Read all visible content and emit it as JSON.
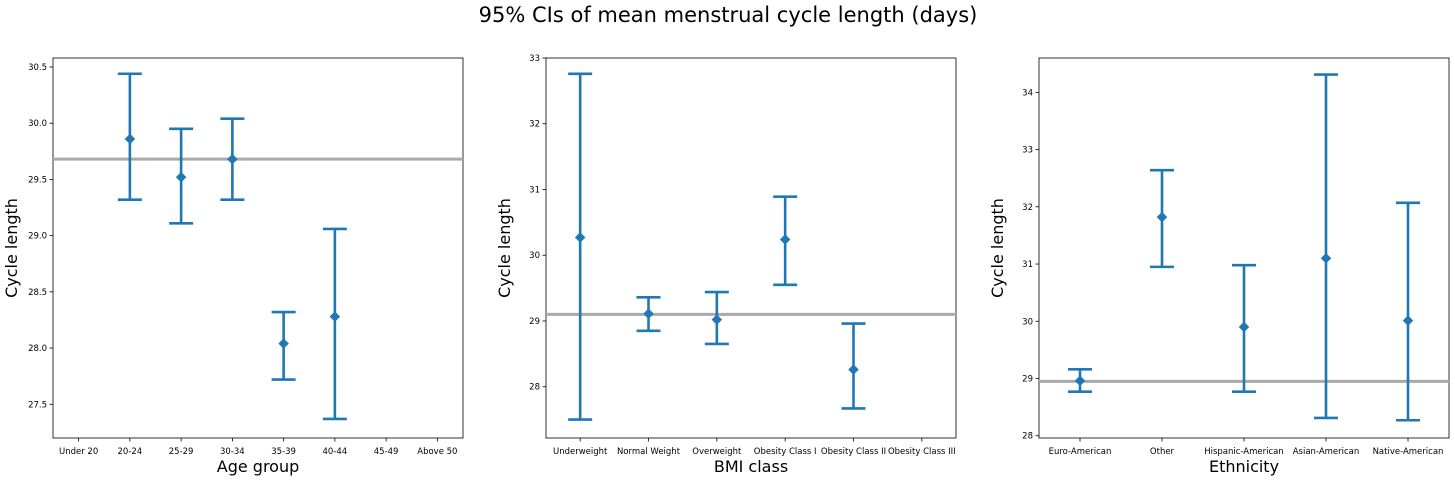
{
  "title": "95% CIs of mean menstrual cycle length (days)",
  "colors": {
    "series": "#1f77b4",
    "reference_line": "#aaaaaa",
    "frame": "#000000"
  },
  "chart_data": [
    {
      "type": "errorbar",
      "xlabel": "Age group",
      "ylabel": "Cycle length",
      "categories": [
        "Under 20",
        "20-24",
        "25-29",
        "30-34",
        "35-39",
        "40-44",
        "45-49",
        "Above 50"
      ],
      "yticks": [
        27.5,
        28.0,
        28.5,
        29.0,
        29.5,
        30.0,
        30.5
      ],
      "ytick_labels": [
        "27.5",
        "28.0",
        "28.5",
        "29.0",
        "29.5",
        "30.0",
        "30.5"
      ],
      "ylim": [
        27.2,
        30.58
      ],
      "reference_line": 29.68,
      "points": [
        {
          "category": "20-24",
          "mean": 29.86,
          "lower": 29.32,
          "upper": 30.44
        },
        {
          "category": "25-29",
          "mean": 29.52,
          "lower": 29.11,
          "upper": 29.95
        },
        {
          "category": "30-34",
          "mean": 29.68,
          "lower": 29.32,
          "upper": 30.04
        },
        {
          "category": "35-39",
          "mean": 28.04,
          "lower": 27.72,
          "upper": 28.32
        },
        {
          "category": "40-44",
          "mean": 28.28,
          "lower": 27.37,
          "upper": 29.06
        }
      ]
    },
    {
      "type": "errorbar",
      "xlabel": "BMI class",
      "ylabel": "Cycle length",
      "categories": [
        "Underweight",
        "Normal Weight",
        "Overweight",
        "Obesity Class I",
        "Obesity Class II",
        "Obesity Class III"
      ],
      "yticks": [
        28,
        29,
        30,
        31,
        32,
        33
      ],
      "ytick_labels": [
        "28",
        "29",
        "30",
        "31",
        "32",
        "33"
      ],
      "ylim": [
        27.22,
        33.0
      ],
      "reference_line": 29.1,
      "points": [
        {
          "category": "Underweight",
          "mean": 30.27,
          "lower": 27.5,
          "upper": 32.76
        },
        {
          "category": "Normal Weight",
          "mean": 29.11,
          "lower": 28.85,
          "upper": 29.36
        },
        {
          "category": "Overweight",
          "mean": 29.02,
          "lower": 28.65,
          "upper": 29.44
        },
        {
          "category": "Obesity Class I",
          "mean": 30.24,
          "lower": 29.55,
          "upper": 30.89
        },
        {
          "category": "Obesity Class II",
          "mean": 28.26,
          "lower": 27.67,
          "upper": 28.96
        }
      ]
    },
    {
      "type": "errorbar",
      "xlabel": "Ethnicity",
      "ylabel": "Cycle length",
      "categories": [
        "Euro-American",
        "Other",
        "Hispanic-American",
        "Asian-American",
        "Native-American"
      ],
      "yticks": [
        28,
        29,
        30,
        31,
        32,
        33,
        34
      ],
      "ytick_labels": [
        "28",
        "29",
        "30",
        "31",
        "32",
        "33",
        "34"
      ],
      "ylim": [
        27.96,
        34.6
      ],
      "reference_line": 28.95,
      "points": [
        {
          "category": "Euro-American",
          "mean": 28.96,
          "lower": 28.77,
          "upper": 29.16
        },
        {
          "category": "Other",
          "mean": 31.82,
          "lower": 30.95,
          "upper": 32.64
        },
        {
          "category": "Hispanic-American",
          "mean": 29.9,
          "lower": 28.77,
          "upper": 30.98
        },
        {
          "category": "Asian-American",
          "mean": 31.1,
          "lower": 28.31,
          "upper": 34.31
        },
        {
          "category": "Native-American",
          "mean": 30.01,
          "lower": 28.27,
          "upper": 32.07
        }
      ]
    }
  ]
}
